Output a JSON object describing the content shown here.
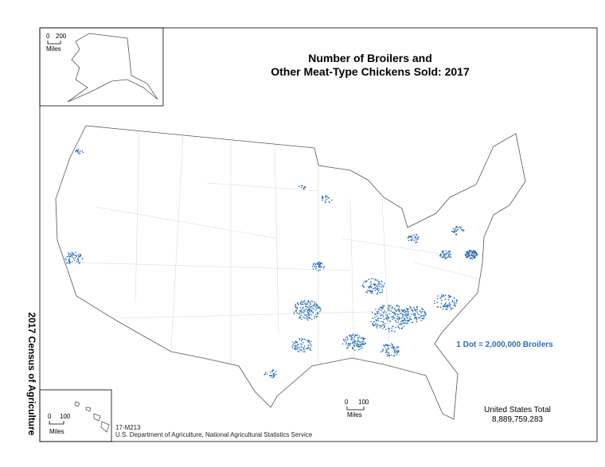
{
  "title": [
    "Number of Broilers and",
    "Other Meat-Type Chickens Sold:  2017"
  ],
  "legend": "1 Dot = 2,000,000 Broilers",
  "total": {
    "label": "United States Total",
    "value": "8,889,759,283"
  },
  "footer": {
    "code": "17-M213",
    "agency": "U.S. Department of Agriculture, National Agricultural Statistics Service"
  },
  "side_label": "2017 Census of Agriculture",
  "scales": [
    {
      "labels": [
        "0",
        "200"
      ],
      "unit": "Miles"
    },
    {
      "labels": [
        "0",
        "100"
      ],
      "unit": "Miles"
    },
    {
      "labels": [
        "0",
        "100"
      ],
      "unit": "Miles"
    }
  ]
}
